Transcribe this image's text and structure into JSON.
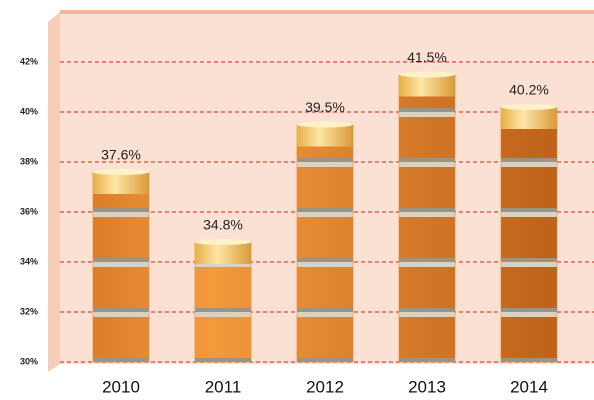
{
  "chart_data": {
    "type": "bar",
    "categories": [
      "2010",
      "2011",
      "2012",
      "2013",
      "2014"
    ],
    "values": [
      37.6,
      34.8,
      39.5,
      41.5,
      40.2
    ],
    "value_labels": [
      "37.6%",
      "34.8%",
      "39.5%",
      "41.5%",
      "40.2%"
    ],
    "color": "#e8862a",
    "ylim": [
      30,
      44
    ],
    "yticks": [
      {
        "value": 30,
        "label": "30%"
      },
      {
        "value": 32,
        "label": "32%"
      },
      {
        "value": 34,
        "label": "34%"
      },
      {
        "value": 36,
        "label": "36%"
      },
      {
        "value": 38,
        "label": "38%"
      },
      {
        "value": 40,
        "label": "40%"
      },
      {
        "value": 42,
        "label": "42%"
      }
    ],
    "grid": true
  }
}
